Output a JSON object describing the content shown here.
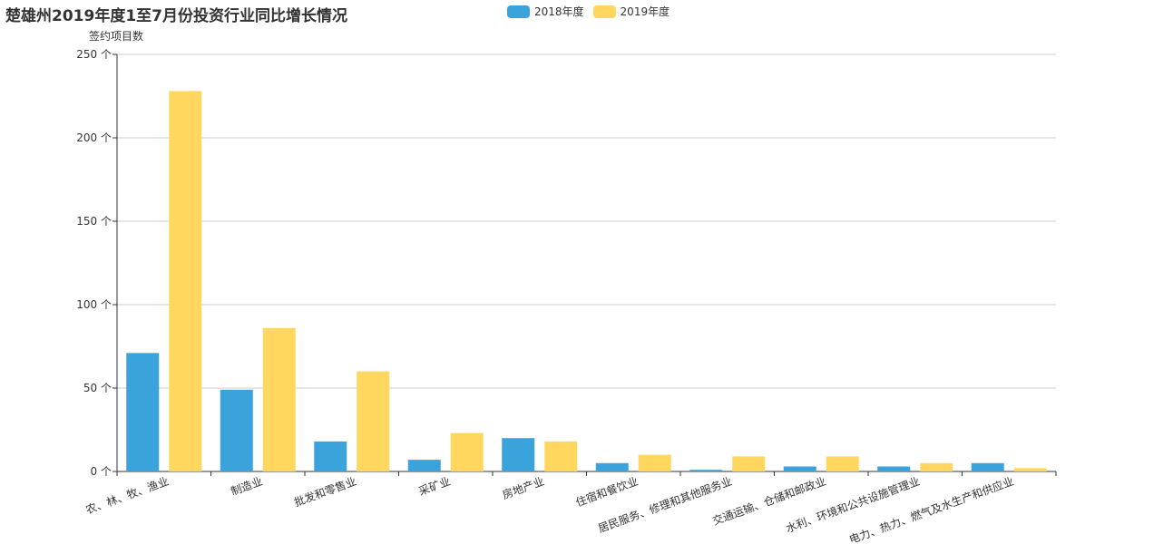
{
  "title": "楚雄州2019年度1至7月份投资行业同比增长情况",
  "chart_data": {
    "type": "bar",
    "title": "楚雄州2019年度1至7月份投资行业同比增长情况",
    "ylabel": "签约项目数",
    "ylim": [
      0,
      250
    ],
    "yticks": [
      0,
      50,
      100,
      150,
      200,
      250
    ],
    "ytick_suffix": " 个",
    "grid": true,
    "legend_position": "top-center",
    "categories": [
      "农、林、牧、渔业",
      "制造业",
      "批发和零售业",
      "采矿业",
      "房地产业",
      "住宿和餐饮业",
      "居民服务、修理和其他服务业",
      "交通运输、仓储和邮政业",
      "水利、环境和公共设施管理业",
      "电力、热力、燃气及水生产和供应业"
    ],
    "series": [
      {
        "name": "2018年度",
        "color": "#3aa3dc",
        "values": [
          71,
          49,
          18,
          7,
          20,
          5,
          1,
          3,
          3,
          5
        ]
      },
      {
        "name": "2019年度",
        "color": "#ffd75e",
        "values": [
          228,
          86,
          60,
          23,
          18,
          10,
          9,
          9,
          5,
          2
        ]
      }
    ]
  }
}
